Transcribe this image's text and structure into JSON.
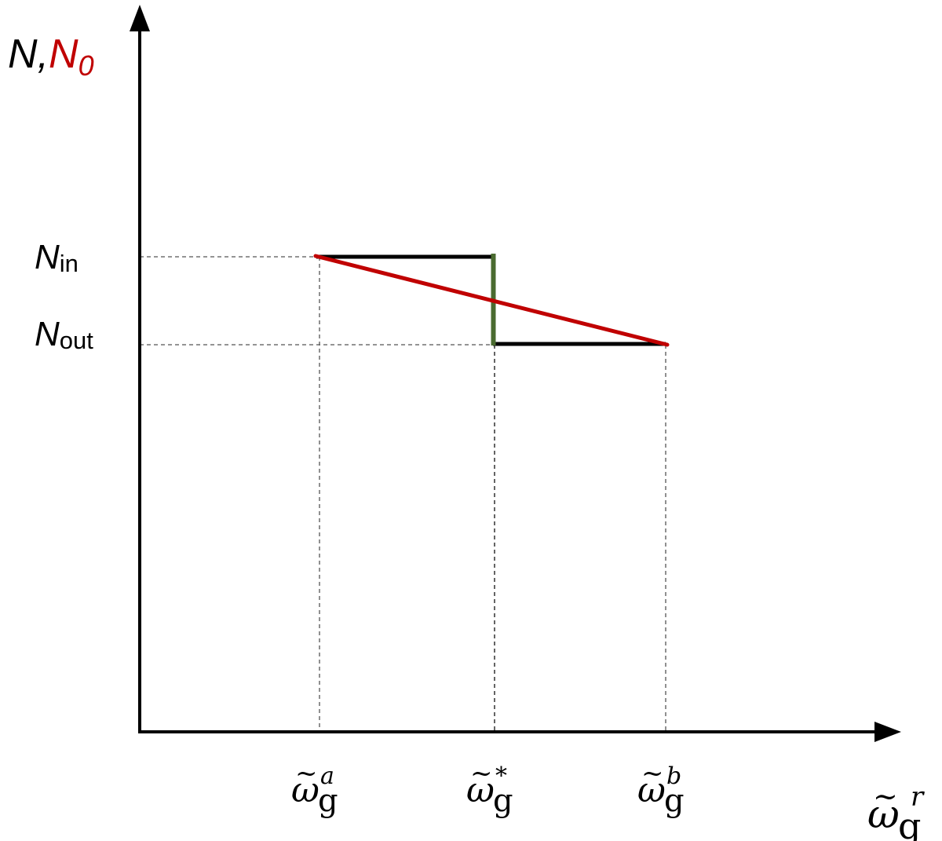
{
  "y_axis": {
    "label_n": "N",
    "label_comma": ",",
    "label_n0_main": "N",
    "label_n0_sub": "0",
    "n0_color": "#c00000",
    "ticks": [
      {
        "main": "N",
        "sub": "in"
      },
      {
        "main": "N",
        "sub": "out"
      }
    ]
  },
  "x_axis": {
    "tilde": "~",
    "omega": "ω",
    "sub": "g",
    "ticks": [
      {
        "key": "a",
        "sup": "a"
      },
      {
        "key": "star",
        "sup": "*"
      },
      {
        "key": "b",
        "sup": "b"
      }
    ],
    "axis_sup": "r"
  },
  "colors": {
    "axis": "#000000",
    "step_curve": "#000000",
    "linear_curve": "#c00000",
    "jump_segment": "#4a6b30",
    "guide_lines": "#555555"
  }
}
